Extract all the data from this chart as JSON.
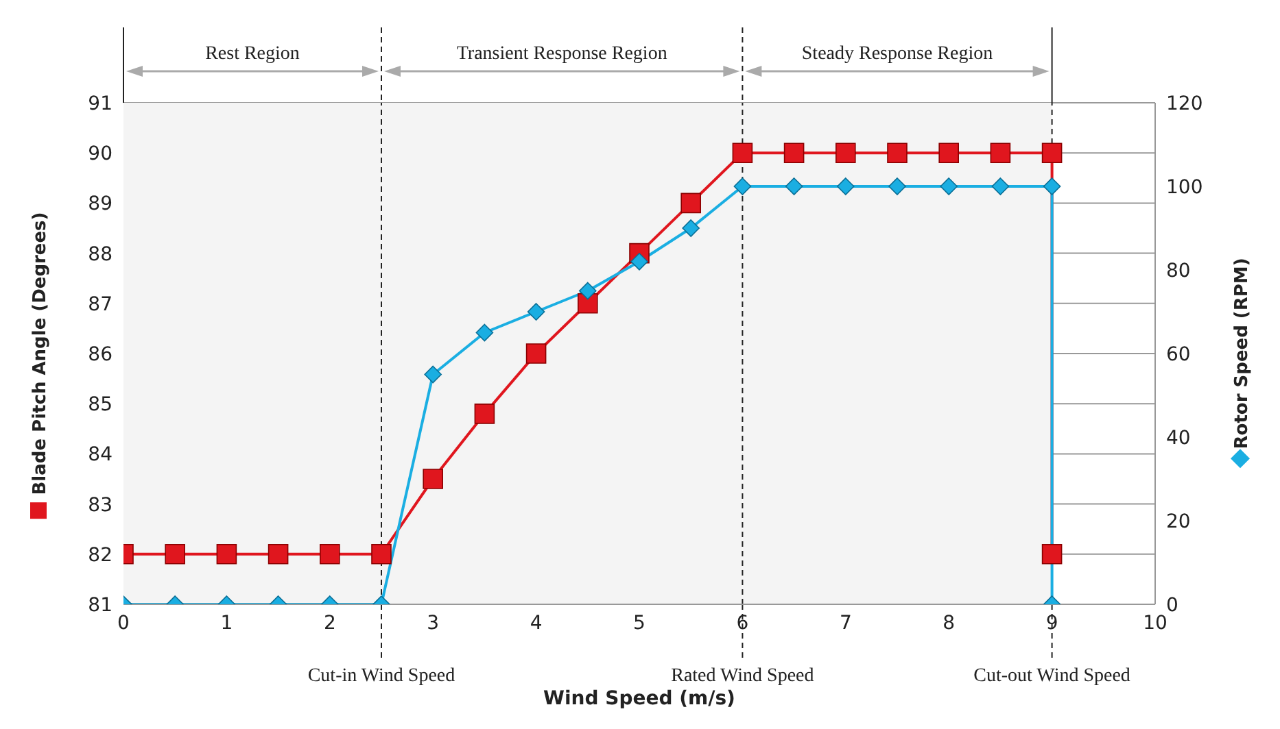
{
  "chart_data": {
    "type": "line",
    "xlabel": "Wind Speed (m/s)",
    "ylabel": "Blade Pitch Angle (Degrees)",
    "y2label": "Rotor Speed (RPM)",
    "xlim": [
      0,
      10
    ],
    "xticks": [
      0,
      1,
      2,
      3,
      4,
      5,
      6,
      7,
      8,
      9,
      10
    ],
    "ylim": [
      81,
      91
    ],
    "yticks": [
      81,
      82,
      83,
      84,
      85,
      86,
      87,
      88,
      89,
      90,
      91
    ],
    "y2lim": [
      0,
      120
    ],
    "y2ticks": [
      0,
      20,
      40,
      60,
      80,
      100,
      120
    ],
    "grid": "y",
    "line_style": "solid",
    "series": [
      {
        "color": "#e0161e",
        "marker": "square",
        "x": [
          0,
          0.5,
          1,
          1.5,
          2,
          2.5,
          3,
          3.5,
          4,
          4.5,
          5,
          5.5,
          6,
          6.5,
          7,
          7.5,
          8,
          8.5,
          9,
          9
        ],
        "values": [
          82,
          82,
          82,
          82,
          82,
          82,
          83.5,
          84.8,
          86,
          87,
          88,
          89,
          90,
          90,
          90,
          90,
          90,
          90,
          90,
          82
        ]
      },
      {
        "color": "#1aaee2",
        "marker": "diamond",
        "axis": "y2",
        "x": [
          0,
          0.5,
          1,
          1.5,
          2,
          2.5,
          3,
          3.5,
          4,
          4.5,
          5,
          5.5,
          6,
          6.5,
          7,
          7.5,
          8,
          8.5,
          9,
          9
        ],
        "values": [
          0,
          0,
          0,
          0,
          0,
          0,
          55,
          65,
          70,
          75,
          82,
          90,
          100,
          100,
          100,
          100,
          100,
          100,
          100,
          0
        ]
      }
    ],
    "ref_lines": [
      {
        "axis": "x",
        "value": 2.5,
        "label": "Cut-in Wind Speed",
        "color": "#222222",
        "line_style": "dashed"
      },
      {
        "axis": "x",
        "value": 6,
        "label": "Rated Wind Speed",
        "color": "#222222",
        "line_style": "dashed"
      },
      {
        "axis": "x",
        "value": 9,
        "label": "Cut-out Wind Speed",
        "color": "#222222",
        "line_style": "dashed"
      }
    ],
    "bands": [
      {
        "axis": "x",
        "from": 0,
        "to": 2.5,
        "label": "Rest Region",
        "color": "#f4f4f4"
      },
      {
        "axis": "x",
        "from": 2.5,
        "to": 6,
        "label": "Transient Response Region",
        "color": "#f4f4f4"
      },
      {
        "axis": "x",
        "from": 6,
        "to": 9,
        "label": "Steady Response Region",
        "color": "#f4f4f4"
      }
    ]
  }
}
